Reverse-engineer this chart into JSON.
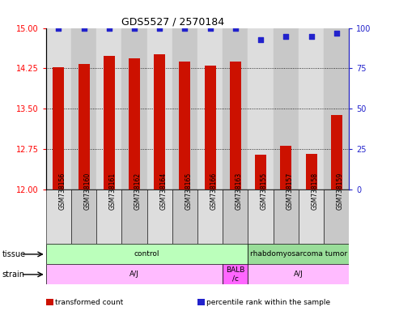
{
  "title": "GDS5527 / 2570184",
  "samples": [
    "GSM738156",
    "GSM738160",
    "GSM738161",
    "GSM738162",
    "GSM738164",
    "GSM738165",
    "GSM738166",
    "GSM738163",
    "GSM738155",
    "GSM738157",
    "GSM738158",
    "GSM738159"
  ],
  "bar_values": [
    14.27,
    14.33,
    14.48,
    14.43,
    14.52,
    14.38,
    14.3,
    14.38,
    12.65,
    12.82,
    12.67,
    13.38
  ],
  "percentile_values": [
    100,
    100,
    100,
    100,
    100,
    100,
    100,
    100,
    93,
    95,
    95,
    97
  ],
  "ylim": [
    12,
    15
  ],
  "ylim_right": [
    0,
    100
  ],
  "yticks_left": [
    12,
    12.75,
    13.5,
    14.25,
    15
  ],
  "yticks_right": [
    0,
    25,
    50,
    75,
    100
  ],
  "bar_color": "#cc1100",
  "dot_color": "#2222cc",
  "tissue_labels": [
    {
      "label": "control",
      "start": 0,
      "end": 8,
      "color": "#bbffbb"
    },
    {
      "label": "rhabdomyosarcoma tumor",
      "start": 8,
      "end": 12,
      "color": "#99dd99"
    }
  ],
  "strain_labels": [
    {
      "label": "A/J",
      "start": 0,
      "end": 7,
      "color": "#ffbbff"
    },
    {
      "label": "BALB\n/c",
      "start": 7,
      "end": 8,
      "color": "#ff66ff"
    },
    {
      "label": "A/J",
      "start": 8,
      "end": 12,
      "color": "#ffbbff"
    }
  ],
  "legend_items": [
    {
      "color": "#cc1100",
      "label": "transformed count"
    },
    {
      "color": "#2222cc",
      "label": "percentile rank within the sample"
    }
  ],
  "bg_colors": [
    "#dddddd",
    "#c8c8c8"
  ]
}
